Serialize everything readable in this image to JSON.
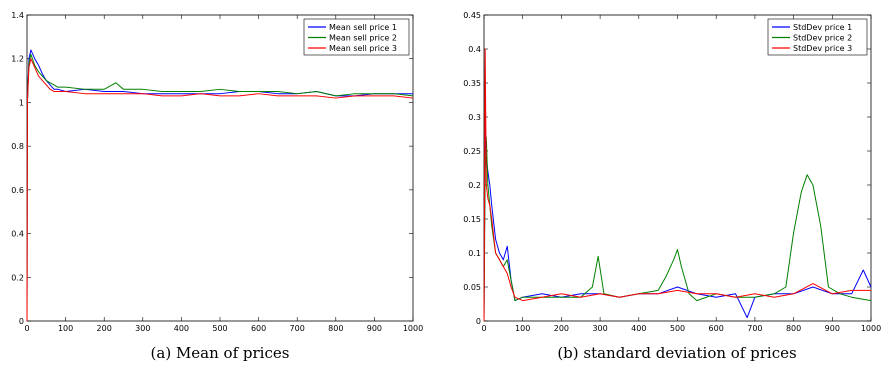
{
  "chart_data": [
    {
      "type": "line",
      "caption": "(a) Mean of prices",
      "title": "",
      "xlabel": "",
      "ylabel": "",
      "xlim": [
        0,
        1000
      ],
      "ylim": [
        0,
        1.4
      ],
      "xticks": [
        0,
        100,
        200,
        300,
        400,
        500,
        600,
        700,
        800,
        900,
        1000
      ],
      "yticks": [
        0,
        0.2,
        0.4,
        0.6,
        0.8,
        1,
        1.2,
        1.4
      ],
      "xtick_labels": [
        "0",
        "100",
        "200",
        "300",
        "400",
        "500",
        "600",
        "700",
        "800",
        "900",
        "1000"
      ],
      "ytick_labels": [
        "0",
        "0.2",
        "0.4",
        "0.6",
        "0.8",
        "1",
        "1.2",
        "1.4"
      ],
      "grid": false,
      "legend_position": "top-right",
      "series": [
        {
          "name": "Mean sell price 1",
          "color": "#0000ff",
          "x": [
            0,
            1,
            5,
            10,
            20,
            30,
            40,
            50,
            60,
            70,
            80,
            100,
            150,
            200,
            250,
            300,
            350,
            400,
            450,
            500,
            550,
            600,
            650,
            700,
            750,
            800,
            850,
            900,
            950,
            1000
          ],
          "y": [
            0,
            1.0,
            1.2,
            1.24,
            1.2,
            1.17,
            1.13,
            1.1,
            1.08,
            1.06,
            1.06,
            1.05,
            1.06,
            1.05,
            1.05,
            1.04,
            1.04,
            1.04,
            1.04,
            1.04,
            1.05,
            1.05,
            1.04,
            1.04,
            1.05,
            1.03,
            1.03,
            1.04,
            1.04,
            1.04
          ]
        },
        {
          "name": "Mean sell price 2",
          "color": "#008000",
          "x": [
            0,
            1,
            5,
            10,
            20,
            30,
            40,
            50,
            60,
            70,
            80,
            100,
            150,
            200,
            230,
            250,
            300,
            350,
            400,
            450,
            500,
            550,
            600,
            650,
            700,
            750,
            800,
            850,
            900,
            950,
            1000
          ],
          "y": [
            0,
            1.0,
            1.18,
            1.22,
            1.17,
            1.14,
            1.12,
            1.1,
            1.09,
            1.08,
            1.07,
            1.07,
            1.06,
            1.06,
            1.09,
            1.06,
            1.06,
            1.05,
            1.05,
            1.05,
            1.06,
            1.05,
            1.05,
            1.05,
            1.04,
            1.05,
            1.03,
            1.04,
            1.04,
            1.04,
            1.03
          ]
        },
        {
          "name": "Mean sell price 3",
          "color": "#ff0000",
          "x": [
            0,
            1,
            5,
            10,
            20,
            30,
            40,
            50,
            60,
            70,
            80,
            100,
            150,
            200,
            250,
            300,
            350,
            400,
            450,
            500,
            550,
            600,
            650,
            700,
            750,
            800,
            850,
            900,
            950,
            1000
          ],
          "y": [
            0,
            1.0,
            1.16,
            1.2,
            1.16,
            1.12,
            1.1,
            1.08,
            1.06,
            1.05,
            1.05,
            1.05,
            1.04,
            1.04,
            1.04,
            1.04,
            1.03,
            1.03,
            1.04,
            1.03,
            1.03,
            1.04,
            1.03,
            1.03,
            1.03,
            1.02,
            1.03,
            1.03,
            1.03,
            1.02
          ]
        }
      ]
    },
    {
      "type": "line",
      "caption": "(b) standard deviation of prices",
      "title": "",
      "xlabel": "",
      "ylabel": "",
      "xlim": [
        0,
        1000
      ],
      "ylim": [
        0,
        0.45
      ],
      "xticks": [
        0,
        100,
        200,
        300,
        400,
        500,
        600,
        700,
        800,
        900,
        1000
      ],
      "yticks": [
        0,
        0.05,
        0.1,
        0.15,
        0.2,
        0.25,
        0.3,
        0.35,
        0.4,
        0.45
      ],
      "xtick_labels": [
        "0",
        "100",
        "200",
        "300",
        "400",
        "500",
        "600",
        "700",
        "800",
        "900",
        "1000"
      ],
      "ytick_labels": [
        "0",
        "0.05",
        "0.1",
        "0.15",
        "0.2",
        "0.25",
        "0.3",
        "0.35",
        "0.4",
        "0.45"
      ],
      "grid": false,
      "legend_position": "top-right",
      "series": [
        {
          "name": "StdDev price 1",
          "color": "#0000ff",
          "x": [
            0,
            3,
            6,
            10,
            15,
            20,
            30,
            40,
            50,
            60,
            70,
            80,
            100,
            150,
            200,
            250,
            300,
            350,
            400,
            450,
            500,
            550,
            600,
            650,
            680,
            700,
            750,
            800,
            850,
            900,
            950,
            980,
            1000
          ],
          "y": [
            0,
            0.3,
            0.24,
            0.22,
            0.2,
            0.17,
            0.12,
            0.1,
            0.09,
            0.11,
            0.06,
            0.03,
            0.035,
            0.04,
            0.035,
            0.04,
            0.04,
            0.035,
            0.04,
            0.04,
            0.05,
            0.04,
            0.035,
            0.04,
            0.005,
            0.035,
            0.04,
            0.04,
            0.05,
            0.04,
            0.04,
            0.075,
            0.05
          ]
        },
        {
          "name": "StdDev price 2",
          "color": "#008000",
          "x": [
            0,
            3,
            6,
            10,
            15,
            20,
            30,
            40,
            50,
            60,
            70,
            80,
            100,
            150,
            200,
            250,
            280,
            295,
            310,
            350,
            400,
            450,
            470,
            490,
            500,
            510,
            530,
            550,
            600,
            650,
            700,
            750,
            780,
            800,
            820,
            835,
            850,
            870,
            890,
            920,
            950,
            1000
          ],
          "y": [
            0,
            0.22,
            0.27,
            0.2,
            0.17,
            0.14,
            0.1,
            0.09,
            0.08,
            0.09,
            0.06,
            0.03,
            0.035,
            0.035,
            0.035,
            0.035,
            0.05,
            0.095,
            0.04,
            0.035,
            0.04,
            0.045,
            0.065,
            0.09,
            0.105,
            0.08,
            0.04,
            0.03,
            0.04,
            0.035,
            0.035,
            0.04,
            0.05,
            0.13,
            0.19,
            0.215,
            0.2,
            0.14,
            0.05,
            0.04,
            0.035,
            0.03
          ]
        },
        {
          "name": "StdDev price 3",
          "color": "#ff0000",
          "x": [
            0,
            3,
            6,
            10,
            15,
            20,
            30,
            40,
            50,
            60,
            70,
            80,
            100,
            150,
            200,
            250,
            300,
            350,
            400,
            450,
            500,
            550,
            600,
            650,
            700,
            750,
            800,
            850,
            900,
            950,
            1000
          ],
          "y": [
            0,
            0.4,
            0.2,
            0.18,
            0.17,
            0.15,
            0.1,
            0.09,
            0.08,
            0.07,
            0.05,
            0.035,
            0.03,
            0.035,
            0.04,
            0.035,
            0.04,
            0.035,
            0.04,
            0.04,
            0.045,
            0.04,
            0.04,
            0.035,
            0.04,
            0.035,
            0.04,
            0.055,
            0.04,
            0.045,
            0.045
          ]
        }
      ]
    }
  ]
}
